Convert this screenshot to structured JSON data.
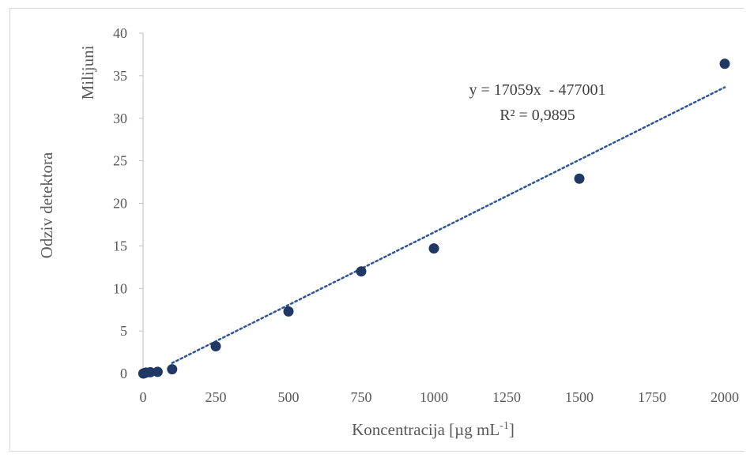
{
  "chart_data": {
    "type": "scatter",
    "ylabel": "Odziv detektora",
    "ylabel_units": "Milijuni",
    "xlabel": "Koncentracija [µg mL",
    "xlabel_sup": "-1",
    "xlabel_end": "]",
    "xlim": [
      0,
      2000
    ],
    "ylim": [
      0,
      40
    ],
    "x_ticks": [
      0,
      250,
      500,
      750,
      1000,
      1250,
      1500,
      1750,
      2000
    ],
    "y_ticks": [
      0,
      5,
      10,
      15,
      20,
      25,
      30,
      35,
      40
    ],
    "grid": false,
    "legend": false,
    "series": [
      {
        "color": "#1f3864",
        "points": [
          {
            "x": 1,
            "y": 0.0
          },
          {
            "x": 5,
            "y": 0.05
          },
          {
            "x": 10,
            "y": 0.1
          },
          {
            "x": 25,
            "y": 0.15
          },
          {
            "x": 50,
            "y": 0.2
          },
          {
            "x": 100,
            "y": 0.5
          },
          {
            "x": 250,
            "y": 3.2
          },
          {
            "x": 500,
            "y": 7.3
          },
          {
            "x": 750,
            "y": 12.0
          },
          {
            "x": 1000,
            "y": 14.7
          },
          {
            "x": 1500,
            "y": 22.9
          },
          {
            "x": 2000,
            "y": 36.4
          }
        ]
      }
    ],
    "trendline": {
      "style": "dotted",
      "color": "#2e5597",
      "slope": 17059,
      "intercept": -477001,
      "y_scale": 1000000,
      "x_range": [
        100,
        2000
      ],
      "equation": "y = 17059x  - 477001",
      "r2": "R² = 0,9895"
    }
  }
}
